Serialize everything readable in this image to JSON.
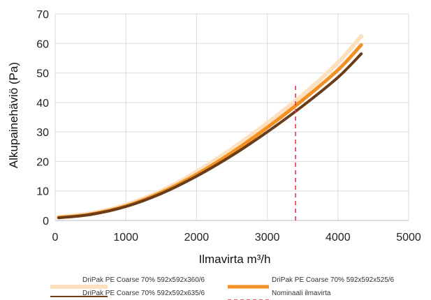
{
  "chart_data": {
    "type": "line",
    "title": "",
    "xlabel": "Ilmavirta m³/h",
    "ylabel": "Alkupainehäviö (Pa)",
    "xlim": [
      0,
      5000
    ],
    "ylim": [
      0,
      70
    ],
    "x_ticks": [
      "0",
      "1000",
      "2000",
      "3000",
      "4000",
      "5000"
    ],
    "y_ticks": [
      "0",
      "10",
      "20",
      "30",
      "40",
      "50",
      "60",
      "70"
    ],
    "grid": true,
    "legend_position": "bottom",
    "series": [
      {
        "name": "DriPak PE Coarse 70% 592x592x360/6",
        "color": "#fde0c0",
        "x": [
          50,
          500,
          1000,
          1500,
          2000,
          2500,
          3000,
          3500,
          4000,
          4330
        ],
        "y": [
          1.2,
          2.4,
          5.3,
          10.0,
          16.5,
          24.3,
          33.0,
          42.5,
          53.5,
          62.5
        ]
      },
      {
        "name": "DriPak PE Coarse 70% 592x592x525/6",
        "color": "#f29122",
        "x": [
          50,
          500,
          1000,
          1500,
          2000,
          2500,
          3000,
          3500,
          4000,
          4330
        ],
        "y": [
          1.0,
          2.1,
          4.9,
          9.5,
          15.6,
          23.0,
          31.5,
          40.8,
          51.0,
          59.5
        ]
      },
      {
        "name": "DriPak PE Coarse 70% 592x592x635/6",
        "color": "#6b3c16",
        "x": [
          50,
          500,
          1000,
          1500,
          2000,
          2500,
          3000,
          3500,
          4000,
          4330
        ],
        "y": [
          0.9,
          2.0,
          4.7,
          9.1,
          15.0,
          22.0,
          30.0,
          38.8,
          48.5,
          56.5
        ]
      },
      {
        "name": "Nominaali ilmavirta",
        "color": "#e8314a",
        "style": "dashed",
        "x": [
          3400,
          3400
        ],
        "y": [
          0,
          46
        ]
      }
    ]
  }
}
